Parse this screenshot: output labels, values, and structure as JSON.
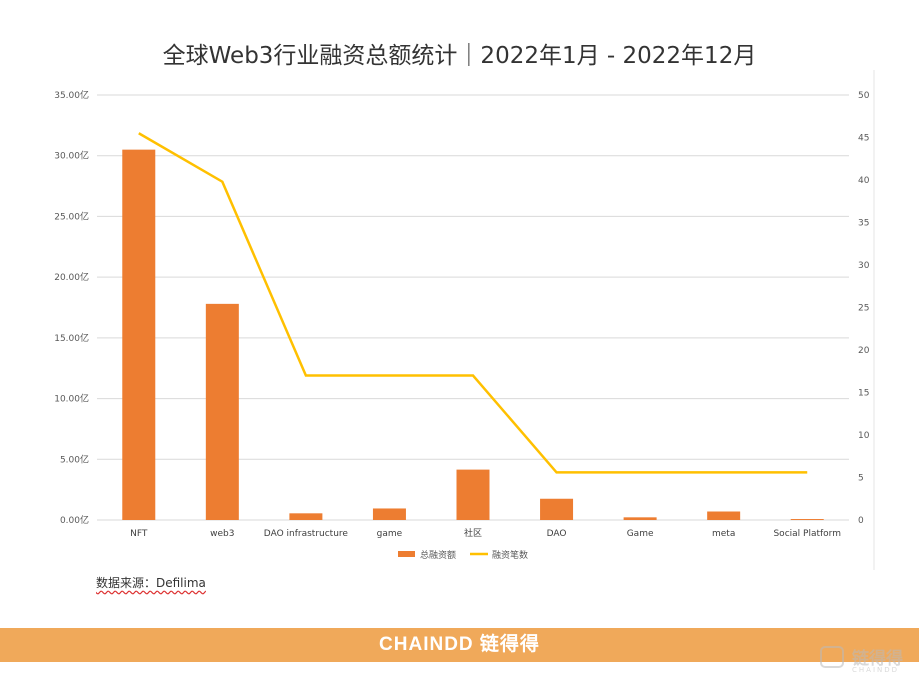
{
  "title": "全球Web3行业融资总额统计｜2022年1月 - 2022年12月",
  "source_label": "数据来源：Defilima",
  "footer": {
    "brand": "CHAINDD 链得得"
  },
  "watermark": {
    "text": "链得得",
    "sub": "CHAINDD"
  },
  "colors": {
    "bar": "#ed7d31",
    "line": "#ffc000",
    "grid": "#d9d9d9",
    "footer": "#f0a95a"
  },
  "chart_data": {
    "type": "bar",
    "categories": [
      "NFT",
      "web3",
      "DAO infrastructure",
      "game",
      "社区",
      "DAO",
      "Game",
      "meta",
      "Social Platform"
    ],
    "series": [
      {
        "name": "总融资额",
        "type": "bar",
        "axis": "left",
        "values": [
          30.5,
          17.8,
          0.55,
          0.95,
          4.15,
          1.75,
          0.22,
          0.7,
          0.08
        ]
      },
      {
        "name": "融资笔数",
        "type": "line",
        "axis": "right",
        "values": [
          45.5,
          39.8,
          17,
          17,
          17,
          5.6,
          5.6,
          5.6,
          5.6
        ]
      }
    ],
    "y_left": {
      "ylim": [
        0,
        35
      ],
      "ticks": [
        "0.00亿",
        "5.00亿",
        "10.00亿",
        "15.00亿",
        "20.00亿",
        "25.00亿",
        "30.00亿",
        "35.00亿"
      ]
    },
    "y_right": {
      "ylim": [
        0,
        50
      ],
      "ticks": [
        "0",
        "5",
        "10",
        "15",
        "20",
        "25",
        "30",
        "35",
        "40",
        "45",
        "50"
      ]
    },
    "grid": true,
    "legend_position": "bottom"
  }
}
